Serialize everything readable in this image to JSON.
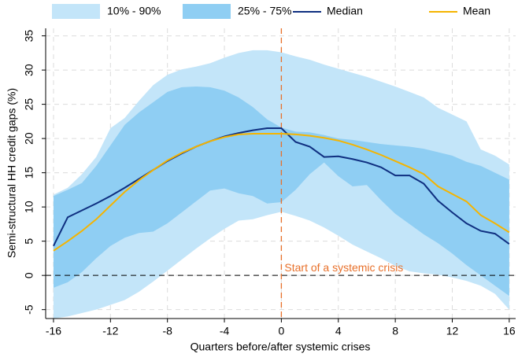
{
  "chart_data": {
    "type": "line",
    "x": [
      -16,
      -15,
      -14,
      -13,
      -12,
      -11,
      -10,
      -9,
      -8,
      -7,
      -6,
      -5,
      -4,
      -3,
      -2,
      -1,
      0,
      1,
      2,
      3,
      4,
      5,
      6,
      7,
      8,
      9,
      10,
      11,
      12,
      13,
      14,
      15,
      16
    ],
    "series": [
      {
        "name": "10% - 90%",
        "color": "#c3e5f9",
        "kind": "band",
        "low": [
          -6.3,
          -6.0,
          -5.5,
          -5.0,
          -4.3,
          -3.6,
          -2.4,
          -0.9,
          0.7,
          2.3,
          3.9,
          5.4,
          6.8,
          8.0,
          8.2,
          8.8,
          9.3,
          8.7,
          8.0,
          7.0,
          5.8,
          4.5,
          3.5,
          2.5,
          1.4,
          0.6,
          0.3,
          0.1,
          -0.3,
          -0.8,
          -1.5,
          -2.7,
          -5.0
        ],
        "high": [
          11.8,
          12.8,
          14.8,
          17.3,
          21.5,
          23.0,
          25.5,
          27.8,
          29.3,
          30.1,
          30.5,
          31.0,
          31.8,
          32.5,
          32.9,
          32.9,
          32.6,
          32.0,
          31.5,
          30.8,
          30.2,
          29.6,
          29.0,
          28.3,
          27.6,
          26.8,
          26.0,
          24.5,
          23.5,
          22.5,
          18.4,
          17.5,
          16.2
        ]
      },
      {
        "name": "25% - 75%",
        "color": "#8fcef3",
        "kind": "band",
        "low": [
          -1.8,
          -1.0,
          0.5,
          2.5,
          4.3,
          5.5,
          6.2,
          6.4,
          7.6,
          9.2,
          10.8,
          12.4,
          12.7,
          12.0,
          11.6,
          10.5,
          10.7,
          12.5,
          14.8,
          16.5,
          14.5,
          13.0,
          13.2,
          11.0,
          9.0,
          7.5,
          6.0,
          4.7,
          3.2,
          1.5,
          0.0,
          -1.5,
          -3.0
        ],
        "high": [
          11.6,
          12.5,
          13.5,
          16.0,
          19.0,
          22.0,
          23.8,
          25.3,
          26.8,
          27.5,
          27.6,
          27.5,
          27.0,
          26.0,
          24.6,
          22.8,
          21.6,
          21.0,
          20.9,
          20.5,
          20.0,
          19.8,
          19.5,
          19.2,
          19.0,
          18.8,
          18.5,
          18.0,
          17.5,
          16.6,
          16.0,
          15.0,
          14.0
        ]
      },
      {
        "name": "Median",
        "color": "#0f2f80",
        "kind": "line",
        "values": [
          4.3,
          8.5,
          9.5,
          10.5,
          11.6,
          12.8,
          14.1,
          15.4,
          16.7,
          17.8,
          18.8,
          19.6,
          20.3,
          20.8,
          21.2,
          21.5,
          21.5,
          19.5,
          18.8,
          17.3,
          17.4,
          17.0,
          16.5,
          15.8,
          14.6,
          14.6,
          13.4,
          10.9,
          9.2,
          7.6,
          6.5,
          6.1,
          4.6
        ]
      },
      {
        "name": "Mean",
        "color": "#f5b400",
        "kind": "line",
        "values": [
          3.6,
          5.0,
          6.5,
          8.2,
          10.2,
          12.2,
          13.9,
          15.4,
          16.8,
          17.9,
          18.8,
          19.6,
          20.2,
          20.6,
          20.7,
          20.7,
          20.7,
          20.6,
          20.4,
          20.1,
          19.7,
          19.1,
          18.4,
          17.6,
          16.7,
          15.8,
          14.8,
          13.0,
          11.9,
          10.8,
          8.8,
          7.6,
          6.3
        ]
      }
    ],
    "xlabel": "Quarters before/after systemic crises",
    "ylabel": "Semi-structural HH credit gaps (%)",
    "xlim": [
      -16.55,
      16.45
    ],
    "ylim": [
      -6.3,
      36.1
    ],
    "xticks": [
      -16,
      -12,
      -8,
      -4,
      0,
      4,
      8,
      12,
      16
    ],
    "yticks": [
      -5,
      0,
      5,
      10,
      15,
      20,
      25,
      30,
      35
    ],
    "grid": true,
    "legend": "top",
    "vline": {
      "x": 0,
      "color": "#e8702a",
      "label": "Start of a systemic crisis"
    },
    "hline": {
      "y": 0,
      "color": "#000000"
    }
  }
}
